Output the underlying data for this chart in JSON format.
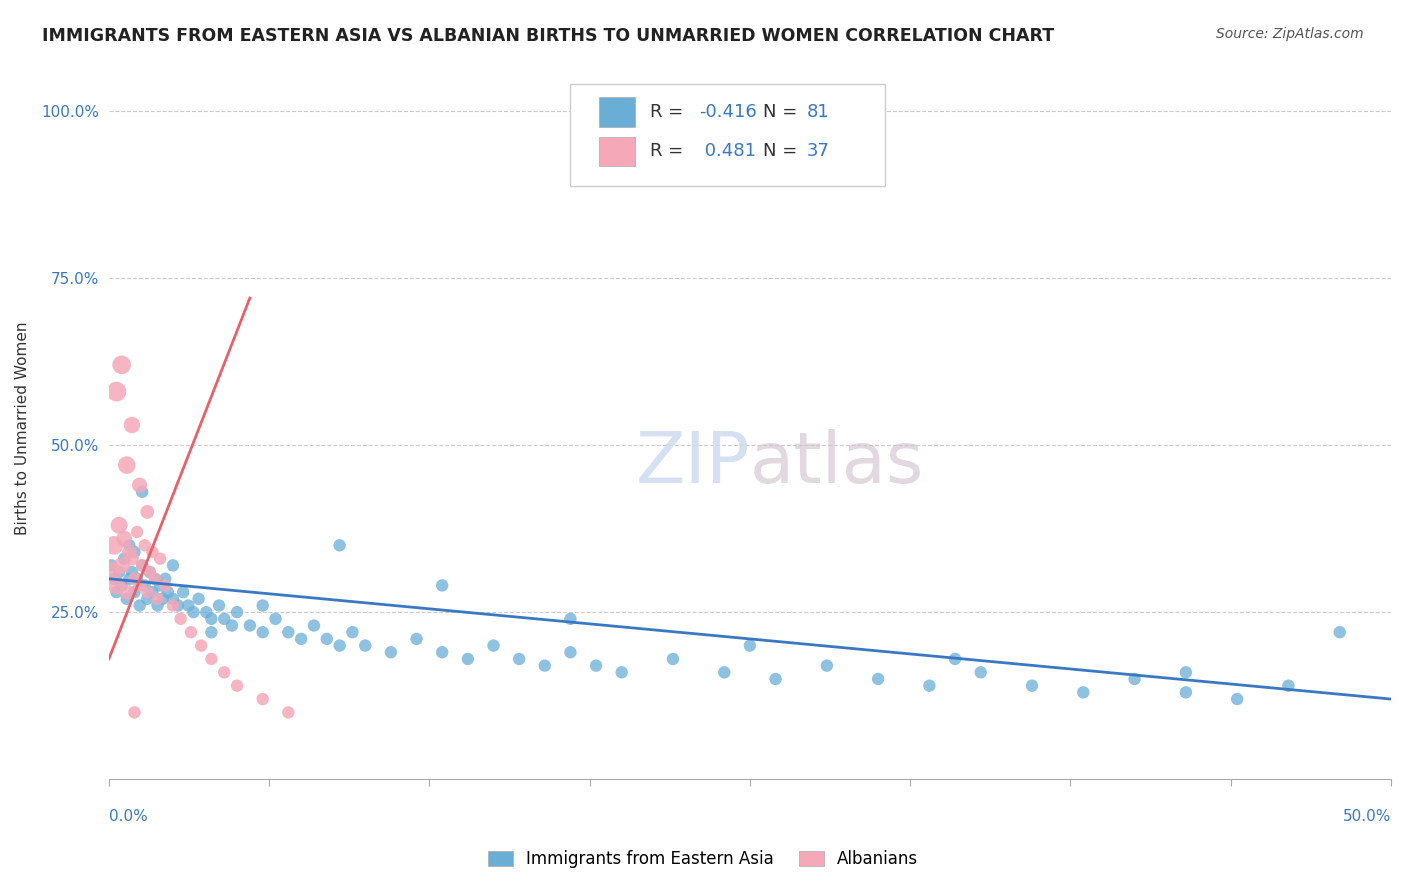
{
  "title": "IMMIGRANTS FROM EASTERN ASIA VS ALBANIAN BIRTHS TO UNMARRIED WOMEN CORRELATION CHART",
  "source": "Source: ZipAtlas.com",
  "ylabel": "Births to Unmarried Women",
  "xlim": [
    0,
    0.5
  ],
  "ylim": [
    0,
    1.05
  ],
  "blue_color": "#6aaed6",
  "pink_color": "#f4a8b8",
  "blue_line_color": "#3b78c3",
  "pink_line_color": "#e8606a",
  "legend_r_blue": "-0.416",
  "legend_n_blue": "81",
  "legend_r_pink": "0.481",
  "legend_n_pink": "37",
  "blue_scatter_x": [
    0.001,
    0.002,
    0.003,
    0.004,
    0.005,
    0.006,
    0.007,
    0.008,
    0.008,
    0.009,
    0.01,
    0.01,
    0.011,
    0.012,
    0.013,
    0.014,
    0.015,
    0.016,
    0.017,
    0.018,
    0.019,
    0.02,
    0.021,
    0.022,
    0.023,
    0.025,
    0.027,
    0.029,
    0.031,
    0.033,
    0.035,
    0.038,
    0.04,
    0.043,
    0.045,
    0.048,
    0.05,
    0.055,
    0.06,
    0.065,
    0.07,
    0.075,
    0.08,
    0.085,
    0.09,
    0.095,
    0.1,
    0.11,
    0.12,
    0.13,
    0.14,
    0.15,
    0.16,
    0.17,
    0.18,
    0.19,
    0.2,
    0.22,
    0.24,
    0.26,
    0.28,
    0.3,
    0.32,
    0.34,
    0.36,
    0.38,
    0.4,
    0.42,
    0.44,
    0.46,
    0.013,
    0.025,
    0.04,
    0.06,
    0.09,
    0.13,
    0.18,
    0.25,
    0.33,
    0.42,
    0.48
  ],
  "blue_scatter_y": [
    0.32,
    0.3,
    0.28,
    0.31,
    0.29,
    0.33,
    0.27,
    0.3,
    0.35,
    0.31,
    0.28,
    0.34,
    0.3,
    0.26,
    0.32,
    0.29,
    0.27,
    0.31,
    0.28,
    0.3,
    0.26,
    0.29,
    0.27,
    0.3,
    0.28,
    0.27,
    0.26,
    0.28,
    0.26,
    0.25,
    0.27,
    0.25,
    0.24,
    0.26,
    0.24,
    0.23,
    0.25,
    0.23,
    0.22,
    0.24,
    0.22,
    0.21,
    0.23,
    0.21,
    0.2,
    0.22,
    0.2,
    0.19,
    0.21,
    0.19,
    0.18,
    0.2,
    0.18,
    0.17,
    0.19,
    0.17,
    0.16,
    0.18,
    0.16,
    0.15,
    0.17,
    0.15,
    0.14,
    0.16,
    0.14,
    0.13,
    0.15,
    0.13,
    0.12,
    0.14,
    0.43,
    0.32,
    0.22,
    0.26,
    0.35,
    0.29,
    0.24,
    0.2,
    0.18,
    0.16,
    0.22
  ],
  "blue_scatter_sizes": [
    80,
    80,
    80,
    80,
    80,
    80,
    80,
    80,
    80,
    80,
    80,
    80,
    80,
    80,
    80,
    80,
    80,
    80,
    80,
    80,
    80,
    80,
    80,
    80,
    80,
    80,
    80,
    80,
    80,
    80,
    80,
    80,
    80,
    80,
    80,
    80,
    80,
    80,
    80,
    80,
    80,
    80,
    80,
    80,
    80,
    80,
    80,
    80,
    80,
    80,
    80,
    80,
    80,
    80,
    80,
    80,
    80,
    80,
    80,
    80,
    80,
    80,
    80,
    80,
    80,
    80,
    80,
    80,
    80,
    80,
    80,
    80,
    80,
    80,
    80,
    80,
    80,
    80,
    80,
    80,
    80
  ],
  "pink_scatter_x": [
    0.001,
    0.002,
    0.003,
    0.004,
    0.005,
    0.006,
    0.007,
    0.008,
    0.009,
    0.01,
    0.011,
    0.012,
    0.013,
    0.014,
    0.015,
    0.016,
    0.017,
    0.018,
    0.019,
    0.02,
    0.022,
    0.025,
    0.028,
    0.032,
    0.036,
    0.04,
    0.045,
    0.05,
    0.06,
    0.07,
    0.003,
    0.005,
    0.007,
    0.009,
    0.012,
    0.015,
    0.01
  ],
  "pink_scatter_y": [
    0.31,
    0.35,
    0.29,
    0.38,
    0.32,
    0.36,
    0.28,
    0.34,
    0.33,
    0.3,
    0.37,
    0.29,
    0.32,
    0.35,
    0.28,
    0.31,
    0.34,
    0.3,
    0.27,
    0.33,
    0.29,
    0.26,
    0.24,
    0.22,
    0.2,
    0.18,
    0.16,
    0.14,
    0.12,
    0.1,
    0.58,
    0.62,
    0.47,
    0.53,
    0.44,
    0.4,
    0.1
  ],
  "pink_scatter_sizes": [
    200,
    180,
    160,
    150,
    140,
    130,
    120,
    110,
    100,
    90,
    80,
    80,
    80,
    80,
    80,
    80,
    80,
    80,
    80,
    80,
    80,
    80,
    80,
    80,
    80,
    80,
    80,
    80,
    80,
    80,
    200,
    180,
    160,
    140,
    120,
    100,
    80
  ],
  "blue_trend_x": [
    0.0,
    0.5
  ],
  "blue_trend_y": [
    0.3,
    0.12
  ],
  "pink_trend_x": [
    0.0,
    0.055
  ],
  "pink_trend_y": [
    0.18,
    0.72
  ]
}
